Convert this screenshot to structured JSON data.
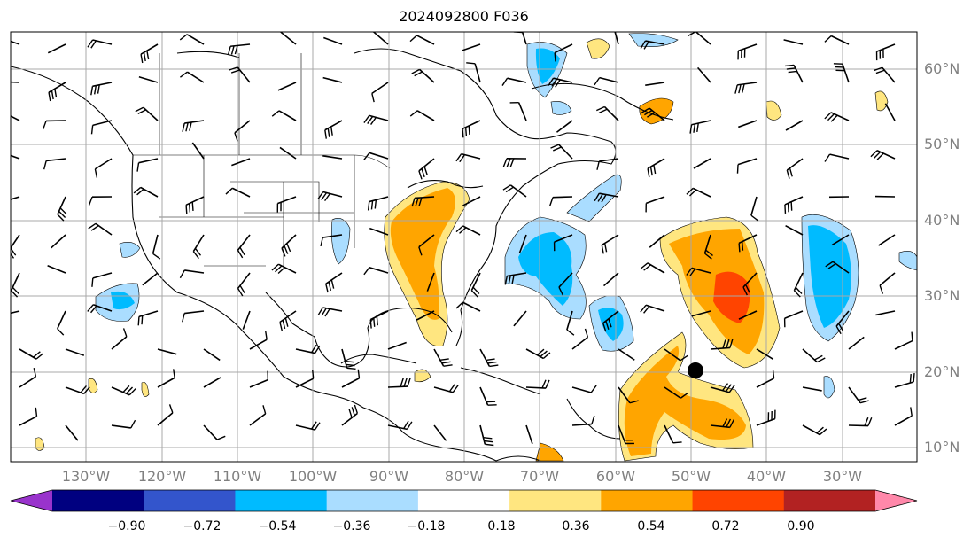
{
  "title": "2024092800 F036",
  "map": {
    "projection": "plate-carree",
    "lon_range": [
      -139,
      -18
    ],
    "lat_range": [
      7,
      65
    ],
    "lat_labels": [
      "60°N",
      "50°N",
      "40°N",
      "30°N",
      "20°N",
      "10°N"
    ],
    "lon_labels": [
      "130°W",
      "120°W",
      "110°W",
      "100°W",
      "90°W",
      "80°W",
      "70°W",
      "60°W",
      "50°W",
      "40°W",
      "30°W"
    ],
    "storm_marker": "tropical-cyclone-center"
  },
  "colorbar": {
    "labels": [
      "−0.90",
      "−0.72",
      "−0.54",
      "−0.36",
      "−0.18",
      "0.18",
      "0.36",
      "0.54",
      "0.72",
      "0.90"
    ],
    "colors": [
      "#9933cc",
      "#000080",
      "#3355cc",
      "#00bbff",
      "#aaddff",
      "#ffffff",
      "#ffe680",
      "#ffa500",
      "#ff4400",
      "#b22222",
      "#ff88aa"
    ]
  }
}
